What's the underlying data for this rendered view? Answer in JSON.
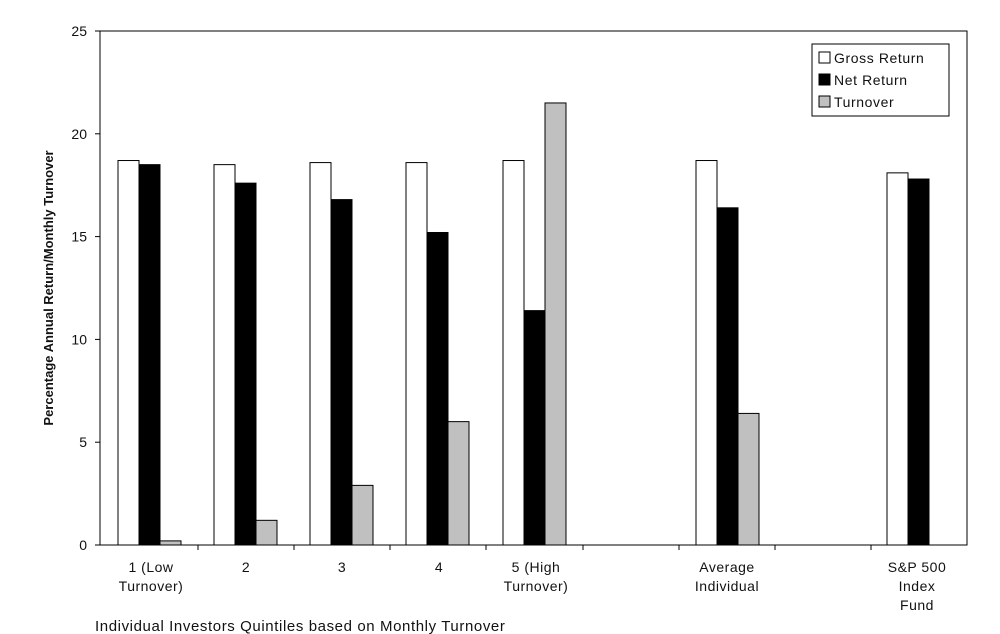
{
  "chart_data": {
    "type": "bar",
    "title": "",
    "xlabel": "Individual Investors Quintiles based on Monthly Turnover",
    "ylabel": "Percentage Annual Return/Monthly Turnover",
    "ylim": [
      0,
      25
    ],
    "yticks": [
      0,
      5,
      10,
      15,
      20,
      25
    ],
    "grid": false,
    "legend_position": "top-right",
    "categories": [
      [
        "1 (Low",
        "Turnover)"
      ],
      [
        "2"
      ],
      [
        "3"
      ],
      [
        "4"
      ],
      [
        "5 (High",
        "Turnover)"
      ],
      [
        "Average",
        "Individual"
      ],
      [
        "S&P 500",
        "Index",
        "Fund"
      ]
    ],
    "series": [
      {
        "name": "Gross Return",
        "color": "#ffffff",
        "values": [
          18.7,
          18.5,
          18.6,
          18.6,
          18.7,
          18.7,
          18.1
        ]
      },
      {
        "name": "Net Return",
        "color": "#000000",
        "values": [
          18.5,
          17.6,
          16.8,
          15.2,
          11.4,
          16.4,
          17.8
        ]
      },
      {
        "name": "Turnover",
        "color": "#c0c0c0",
        "values": [
          0.2,
          1.2,
          2.9,
          6.0,
          21.5,
          6.4,
          null
        ]
      }
    ]
  }
}
